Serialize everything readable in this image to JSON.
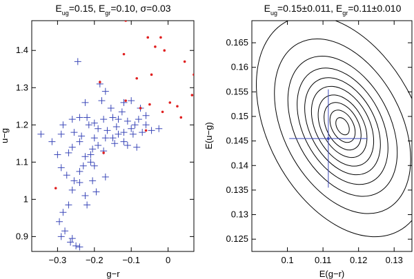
{
  "colors": {
    "blue": "#3a47b8",
    "red": "#e02020",
    "black": "#000000"
  },
  "chart_data": [
    {
      "type": "scatter",
      "title_parts": [
        {
          "text": "E",
          "sub": false
        },
        {
          "text": "ug",
          "sub": true
        },
        {
          "text": "=0.15, E",
          "sub": false
        },
        {
          "text": "gr",
          "sub": true
        },
        {
          "text": "=0.10, σ=0.03",
          "sub": false
        }
      ],
      "xlabel": "g−r",
      "ylabel": "u−g",
      "xlim": [
        -0.37,
        0.07
      ],
      "ylim": [
        0.86,
        1.48
      ],
      "xticks": [
        -0.3,
        -0.2,
        -0.1,
        0
      ],
      "xtick_labels": [
        "−0.3",
        "−0.2",
        "−0.1",
        "0"
      ],
      "yticks": [
        0.9,
        1.0,
        1.1,
        1.2,
        1.3,
        1.4
      ],
      "ytick_labels": [
        "0.9",
        "1",
        "1.1",
        "1.2",
        "1.3",
        "1.4"
      ],
      "series": [
        {
          "name": "blue crosses",
          "marker": "plus",
          "points": [
            [
              -0.245,
              1.37
            ],
            [
              -0.185,
              1.31
            ],
            [
              -0.17,
              1.29
            ],
            [
              -0.225,
              1.26
            ],
            [
              -0.18,
              1.265
            ],
            [
              -0.155,
              1.245
            ],
            [
              -0.125,
              1.235
            ],
            [
              -0.12,
              1.26
            ],
            [
              -0.1,
              1.265
            ],
            [
              -0.075,
              1.245
            ],
            [
              -0.06,
              1.225
            ],
            [
              -0.08,
              1.215
            ],
            [
              -0.09,
              1.2
            ],
            [
              -0.11,
              1.21
            ],
            [
              -0.135,
              1.215
            ],
            [
              -0.15,
              1.22
            ],
            [
              -0.175,
              1.215
            ],
            [
              -0.2,
              1.205
            ],
            [
              -0.22,
              1.22
            ],
            [
              -0.24,
              1.22
            ],
            [
              -0.26,
              1.215
            ],
            [
              -0.215,
              1.2
            ],
            [
              -0.19,
              1.19
            ],
            [
              -0.165,
              1.185
            ],
            [
              -0.14,
              1.195
            ],
            [
              -0.12,
              1.18
            ],
            [
              -0.095,
              1.175
            ],
            [
              -0.07,
              1.18
            ],
            [
              -0.045,
              1.185
            ],
            [
              -0.025,
              1.19
            ],
            [
              -0.06,
              1.2
            ],
            [
              -0.1,
              1.19
            ],
            [
              -0.135,
              1.175
            ],
            [
              -0.15,
              1.165
            ],
            [
              -0.17,
              1.165
            ],
            [
              -0.2,
              1.165
            ],
            [
              -0.235,
              1.17
            ],
            [
              -0.255,
              1.18
            ],
            [
              -0.285,
              1.2
            ],
            [
              -0.29,
              1.175
            ],
            [
              -0.24,
              1.155
            ],
            [
              -0.26,
              1.14
            ],
            [
              -0.19,
              1.145
            ],
            [
              -0.205,
              1.135
            ],
            [
              -0.21,
              1.12
            ],
            [
              -0.175,
              1.13
            ],
            [
              -0.145,
              1.15
            ],
            [
              -0.12,
              1.155
            ],
            [
              -0.11,
              1.145
            ],
            [
              -0.085,
              1.14
            ],
            [
              -0.3,
              1.12
            ],
            [
              -0.27,
              1.125
            ],
            [
              -0.225,
              1.115
            ],
            [
              -0.21,
              1.1
            ],
            [
              -0.23,
              1.09
            ],
            [
              -0.24,
              1.075
            ],
            [
              -0.275,
              1.065
            ],
            [
              -0.255,
              1.05
            ],
            [
              -0.24,
              1.045
            ],
            [
              -0.345,
              1.175
            ],
            [
              -0.315,
              1.155
            ],
            [
              -0.29,
              1.085
            ],
            [
              -0.26,
              1.025
            ],
            [
              -0.27,
              0.985
            ],
            [
              -0.285,
              0.965
            ],
            [
              -0.295,
              0.94
            ],
            [
              -0.28,
              0.915
            ],
            [
              -0.265,
              0.885
            ],
            [
              -0.26,
              0.895
            ],
            [
              -0.29,
              0.9
            ],
            [
              -0.25,
              0.875
            ],
            [
              -0.24,
              0.872
            ],
            [
              -0.195,
              1.02
            ],
            [
              -0.205,
              1.05
            ],
            [
              -0.2,
              1.09
            ],
            [
              -0.225,
              1.01
            ],
            [
              -0.22,
              0.985
            ],
            [
              -0.17,
              1.06
            ]
          ]
        },
        {
          "name": "red dots",
          "marker": "dot",
          "points": [
            [
              -0.115,
              1.48
            ],
            [
              -0.02,
              1.435
            ],
            [
              -0.055,
              1.435
            ],
            [
              -0.035,
              1.41
            ],
            [
              -0.01,
              1.4
            ],
            [
              -0.12,
              1.39
            ],
            [
              0.045,
              1.37
            ],
            [
              0.07,
              1.335
            ],
            [
              -0.045,
              1.335
            ],
            [
              -0.085,
              1.325
            ],
            [
              -0.185,
              1.315
            ],
            [
              0.065,
              1.28
            ],
            [
              -0.115,
              1.265
            ],
            [
              0.005,
              1.26
            ],
            [
              -0.05,
              1.255
            ],
            [
              -0.075,
              1.245
            ],
            [
              -0.015,
              1.235
            ],
            [
              0.025,
              1.25
            ],
            [
              0.035,
              1.22
            ],
            [
              -0.06,
              1.185
            ],
            [
              -0.175,
              1.125
            ],
            [
              -0.305,
              1.03
            ]
          ]
        }
      ]
    },
    {
      "type": "contour",
      "title_parts": [
        {
          "text": "E",
          "sub": false
        },
        {
          "text": "ug",
          "sub": true
        },
        {
          "text": "=0.15±0.011, E",
          "sub": false
        },
        {
          "text": "gr",
          "sub": true
        },
        {
          "text": "=0.11±0.010",
          "sub": false
        }
      ],
      "xlabel": "E(g−r)",
      "ylabel": "E(u−g)",
      "xlim": [
        0.09,
        0.135
      ],
      "ylim": [
        0.1225,
        0.1695
      ],
      "xticks": [
        0.1,
        0.11,
        0.12,
        0.13
      ],
      "xtick_labels": [
        "0.1",
        "0.11",
        "0.12",
        "0.13"
      ],
      "yticks": [
        0.125,
        0.13,
        0.135,
        0.14,
        0.145,
        0.15,
        0.155,
        0.16,
        0.165
      ],
      "ytick_labels": [
        "0.125",
        "0.13",
        "0.135",
        "0.14",
        "0.145",
        "0.15",
        "0.155",
        "0.16",
        "0.165"
      ],
      "contour_center": [
        0.1155,
        0.148
      ],
      "contour_scales": [
        0.16,
        0.3,
        0.44,
        0.58,
        0.74,
        0.9,
        1.08,
        1.3,
        1.62,
        2.05
      ],
      "contour_sigma_x": 0.0102,
      "contour_sigma_y": 0.0118,
      "contour_rotation_deg": -28,
      "best_fit": [
        0.1115,
        0.1455
      ],
      "err_x": [
        0.1005,
        0.1225
      ],
      "err_y": [
        0.1355,
        0.1555
      ]
    }
  ]
}
